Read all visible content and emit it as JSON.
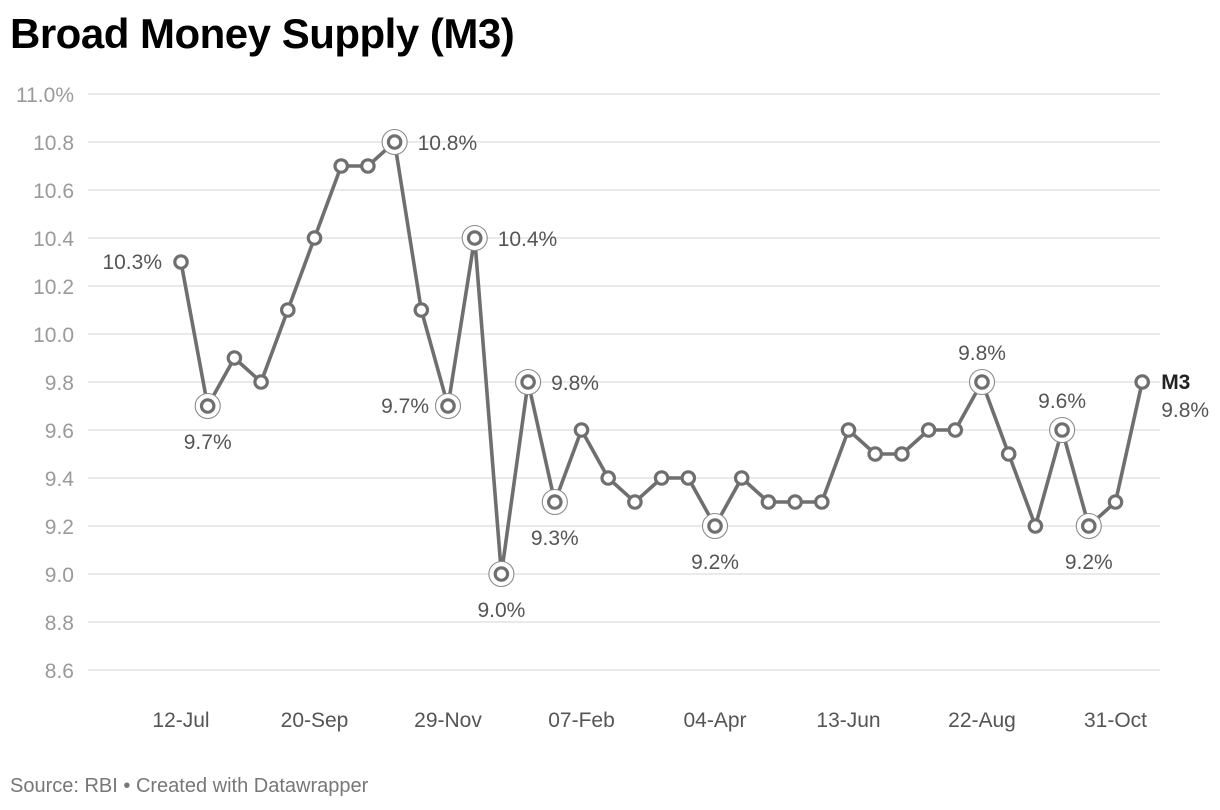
{
  "title": "Broad Money Supply (M3)",
  "footer": "Source: RBI • Created with Datawrapper",
  "colors": {
    "line": "#6f6f6f",
    "grid": "#dddddd",
    "marker_fill": "#ffffff"
  },
  "chart_data": {
    "type": "line",
    "title": "Broad Money Supply (M3)",
    "xlabel": "",
    "ylabel": "",
    "ylim": [
      8.6,
      11.0
    ],
    "y_ticks": [
      {
        "value": 11.0,
        "label": "11.0%"
      },
      {
        "value": 10.8,
        "label": "10.8"
      },
      {
        "value": 10.6,
        "label": "10.6"
      },
      {
        "value": 10.4,
        "label": "10.4"
      },
      {
        "value": 10.2,
        "label": "10.2"
      },
      {
        "value": 10.0,
        "label": "10.0"
      },
      {
        "value": 9.8,
        "label": "9.8"
      },
      {
        "value": 9.6,
        "label": "9.6"
      },
      {
        "value": 9.4,
        "label": "9.4"
      },
      {
        "value": 9.2,
        "label": "9.2"
      },
      {
        "value": 9.0,
        "label": "9.0"
      },
      {
        "value": 8.8,
        "label": "8.8"
      },
      {
        "value": 8.6,
        "label": "8.6"
      }
    ],
    "x_ticks": [
      {
        "index": 0,
        "label": "12-Jul"
      },
      {
        "index": 5,
        "label": "20-Sep"
      },
      {
        "index": 10,
        "label": "29-Nov"
      },
      {
        "index": 15,
        "label": "07-Feb"
      },
      {
        "index": 20,
        "label": "04-Apr"
      },
      {
        "index": 25,
        "label": "13-Jun"
      },
      {
        "index": 30,
        "label": "22-Aug"
      },
      {
        "index": 35,
        "label": "31-Oct"
      }
    ],
    "grid": true,
    "series": [
      {
        "name": "M3",
        "values": [
          10.3,
          9.7,
          9.9,
          9.8,
          10.1,
          10.4,
          10.7,
          10.7,
          10.8,
          10.1,
          9.7,
          10.4,
          9.0,
          9.8,
          9.3,
          9.6,
          9.4,
          9.3,
          9.4,
          9.4,
          9.2,
          9.4,
          9.3,
          9.3,
          9.3,
          9.6,
          9.5,
          9.5,
          9.6,
          9.6,
          9.8,
          9.5,
          9.2,
          9.6,
          9.2,
          9.3,
          9.8
        ]
      }
    ],
    "highlighted": [
      1,
      8,
      10,
      11,
      12,
      13,
      14,
      20,
      30,
      33,
      34
    ],
    "annotations": [
      {
        "index": 0,
        "text": "10.3%",
        "pos": "left"
      },
      {
        "index": 1,
        "text": "9.7%",
        "pos": "below"
      },
      {
        "index": 8,
        "text": "10.8%",
        "pos": "right"
      },
      {
        "index": 10,
        "text": "9.7%",
        "pos": "left"
      },
      {
        "index": 11,
        "text": "10.4%",
        "pos": "right"
      },
      {
        "index": 12,
        "text": "9.0%",
        "pos": "below"
      },
      {
        "index": 13,
        "text": "9.8%",
        "pos": "right"
      },
      {
        "index": 14,
        "text": "9.3%",
        "pos": "below"
      },
      {
        "index": 20,
        "text": "9.2%",
        "pos": "below"
      },
      {
        "index": 30,
        "text": "9.8%",
        "pos": "above"
      },
      {
        "index": 33,
        "text": "9.6%",
        "pos": "above"
      },
      {
        "index": 34,
        "text": "9.2%",
        "pos": "below"
      }
    ],
    "end_label": {
      "name": "M3",
      "value": "9.8%"
    }
  }
}
